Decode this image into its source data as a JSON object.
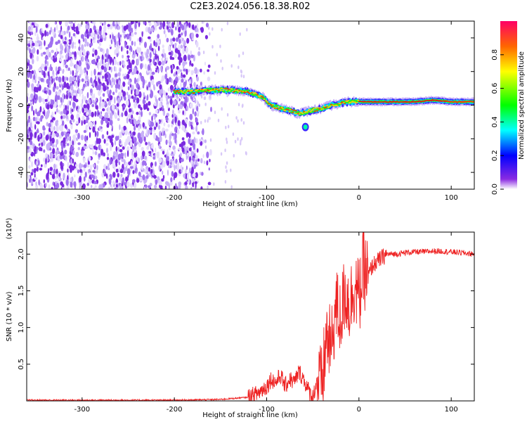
{
  "title": "C2E3.2024.056.18.38.R02",
  "colors": {
    "snr_line": "#ee2222",
    "axis": "#000000"
  },
  "chart_data": [
    {
      "type": "heatmap",
      "xlabel": "Height of straight line (km)",
      "ylabel": "Frequency (Hz)",
      "xlim": [
        -360,
        125
      ],
      "ylim": [
        -50,
        50
      ],
      "x_ticks": [
        -300,
        -200,
        -100,
        0,
        100
      ],
      "y_ticks": [
        -40,
        -20,
        0,
        20,
        40
      ],
      "colorbar": {
        "label": "Normalized spectral amplitude",
        "range": [
          0,
          1
        ],
        "ticks": [
          0.0,
          0.2,
          0.4,
          0.6,
          0.8
        ]
      },
      "regions": [
        {
          "description": "noise",
          "x_range": [
            -360,
            -175
          ],
          "y_range": [
            -50,
            50
          ]
        },
        {
          "description": "signal",
          "x_range": [
            -200,
            125
          ]
        }
      ],
      "signal_track": {
        "x": [
          -200,
          -180,
          -160,
          -140,
          -120,
          -105,
          -95,
          -85,
          -75,
          -65,
          -58,
          -50,
          -40,
          -30,
          -20,
          -10,
          0,
          20,
          40,
          60,
          80,
          100,
          125
        ],
        "y": [
          8,
          8,
          9,
          9,
          8,
          5,
          0,
          -2,
          -3,
          -5,
          -4,
          -3,
          -2,
          0,
          1,
          2,
          2,
          2,
          2,
          2,
          3,
          2,
          2
        ]
      }
    },
    {
      "type": "line",
      "xlabel": "Height of straight line (km)",
      "ylabel": "SNR (10 * v/v)",
      "y_multiplier": "(x10⁴)",
      "xlim": [
        -360,
        125
      ],
      "ylim": [
        0,
        2.3
      ],
      "x_ticks": [
        -300,
        -200,
        -100,
        0,
        100
      ],
      "y_ticks": [
        0.5,
        1.0,
        1.5,
        2.0
      ],
      "series": [
        {
          "x": [
            -360,
            -300,
            -200,
            -150,
            -120,
            -110,
            -100,
            -95,
            -90,
            -85,
            -80,
            -75,
            -70,
            -65,
            -60,
            -55,
            -50,
            -45,
            -40,
            -35,
            -30,
            -25,
            -20,
            -15,
            -10,
            -5,
            0,
            5,
            10,
            15,
            20,
            25,
            30,
            40,
            50,
            60,
            70,
            80,
            90,
            100,
            110,
            125
          ],
          "y": [
            0.01,
            0.01,
            0.01,
            0.02,
            0.05,
            0.1,
            0.2,
            0.3,
            0.25,
            0.35,
            0.2,
            0.3,
            0.25,
            0.4,
            0.3,
            0.15,
            0.05,
            0.3,
            0.2,
            0.9,
            0.7,
            1.3,
            1.1,
            1.5,
            1.3,
            1.6,
            1.4,
            1.8,
            1.7,
            1.85,
            1.9,
            1.95,
            2.0,
            2.0,
            2.02,
            2.03,
            2.03,
            2.04,
            2.04,
            2.03,
            2.02,
            2.0
          ]
        }
      ]
    }
  ]
}
